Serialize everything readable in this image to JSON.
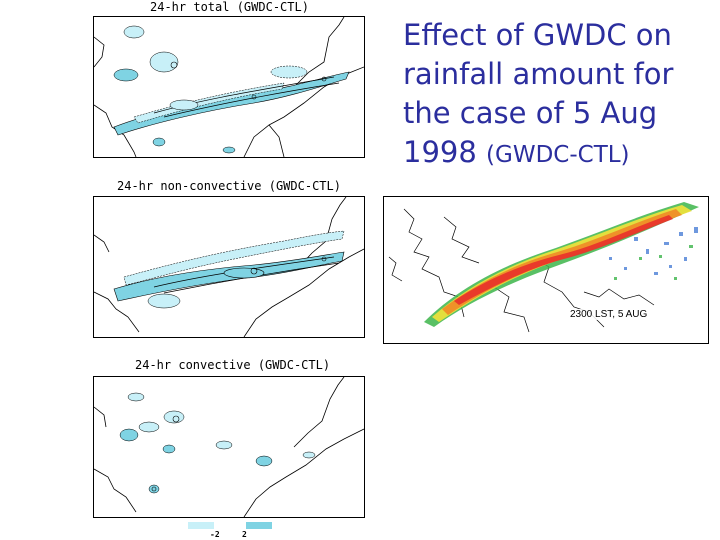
{
  "title": {
    "main": "Effect of GWDC on rainfall amount for the case of 5 Aug 1998",
    "sub": "(GWDC-CTL)"
  },
  "panels": [
    {
      "title": "24-hr total (GWDC-CTL)"
    },
    {
      "title": "24-hr non-convective (GWDC-CTL)"
    },
    {
      "title": "24-hr convective (GWDC-CTL)"
    }
  ],
  "radar": {
    "label": "2300 LST, 5 AUG"
  },
  "colorbar": {
    "low": "-2",
    "high": "2"
  },
  "colors": {
    "title": "#2b2e9e",
    "negative_fill": "#c8f0f8",
    "positive_fill": "#7fd3e3"
  }
}
